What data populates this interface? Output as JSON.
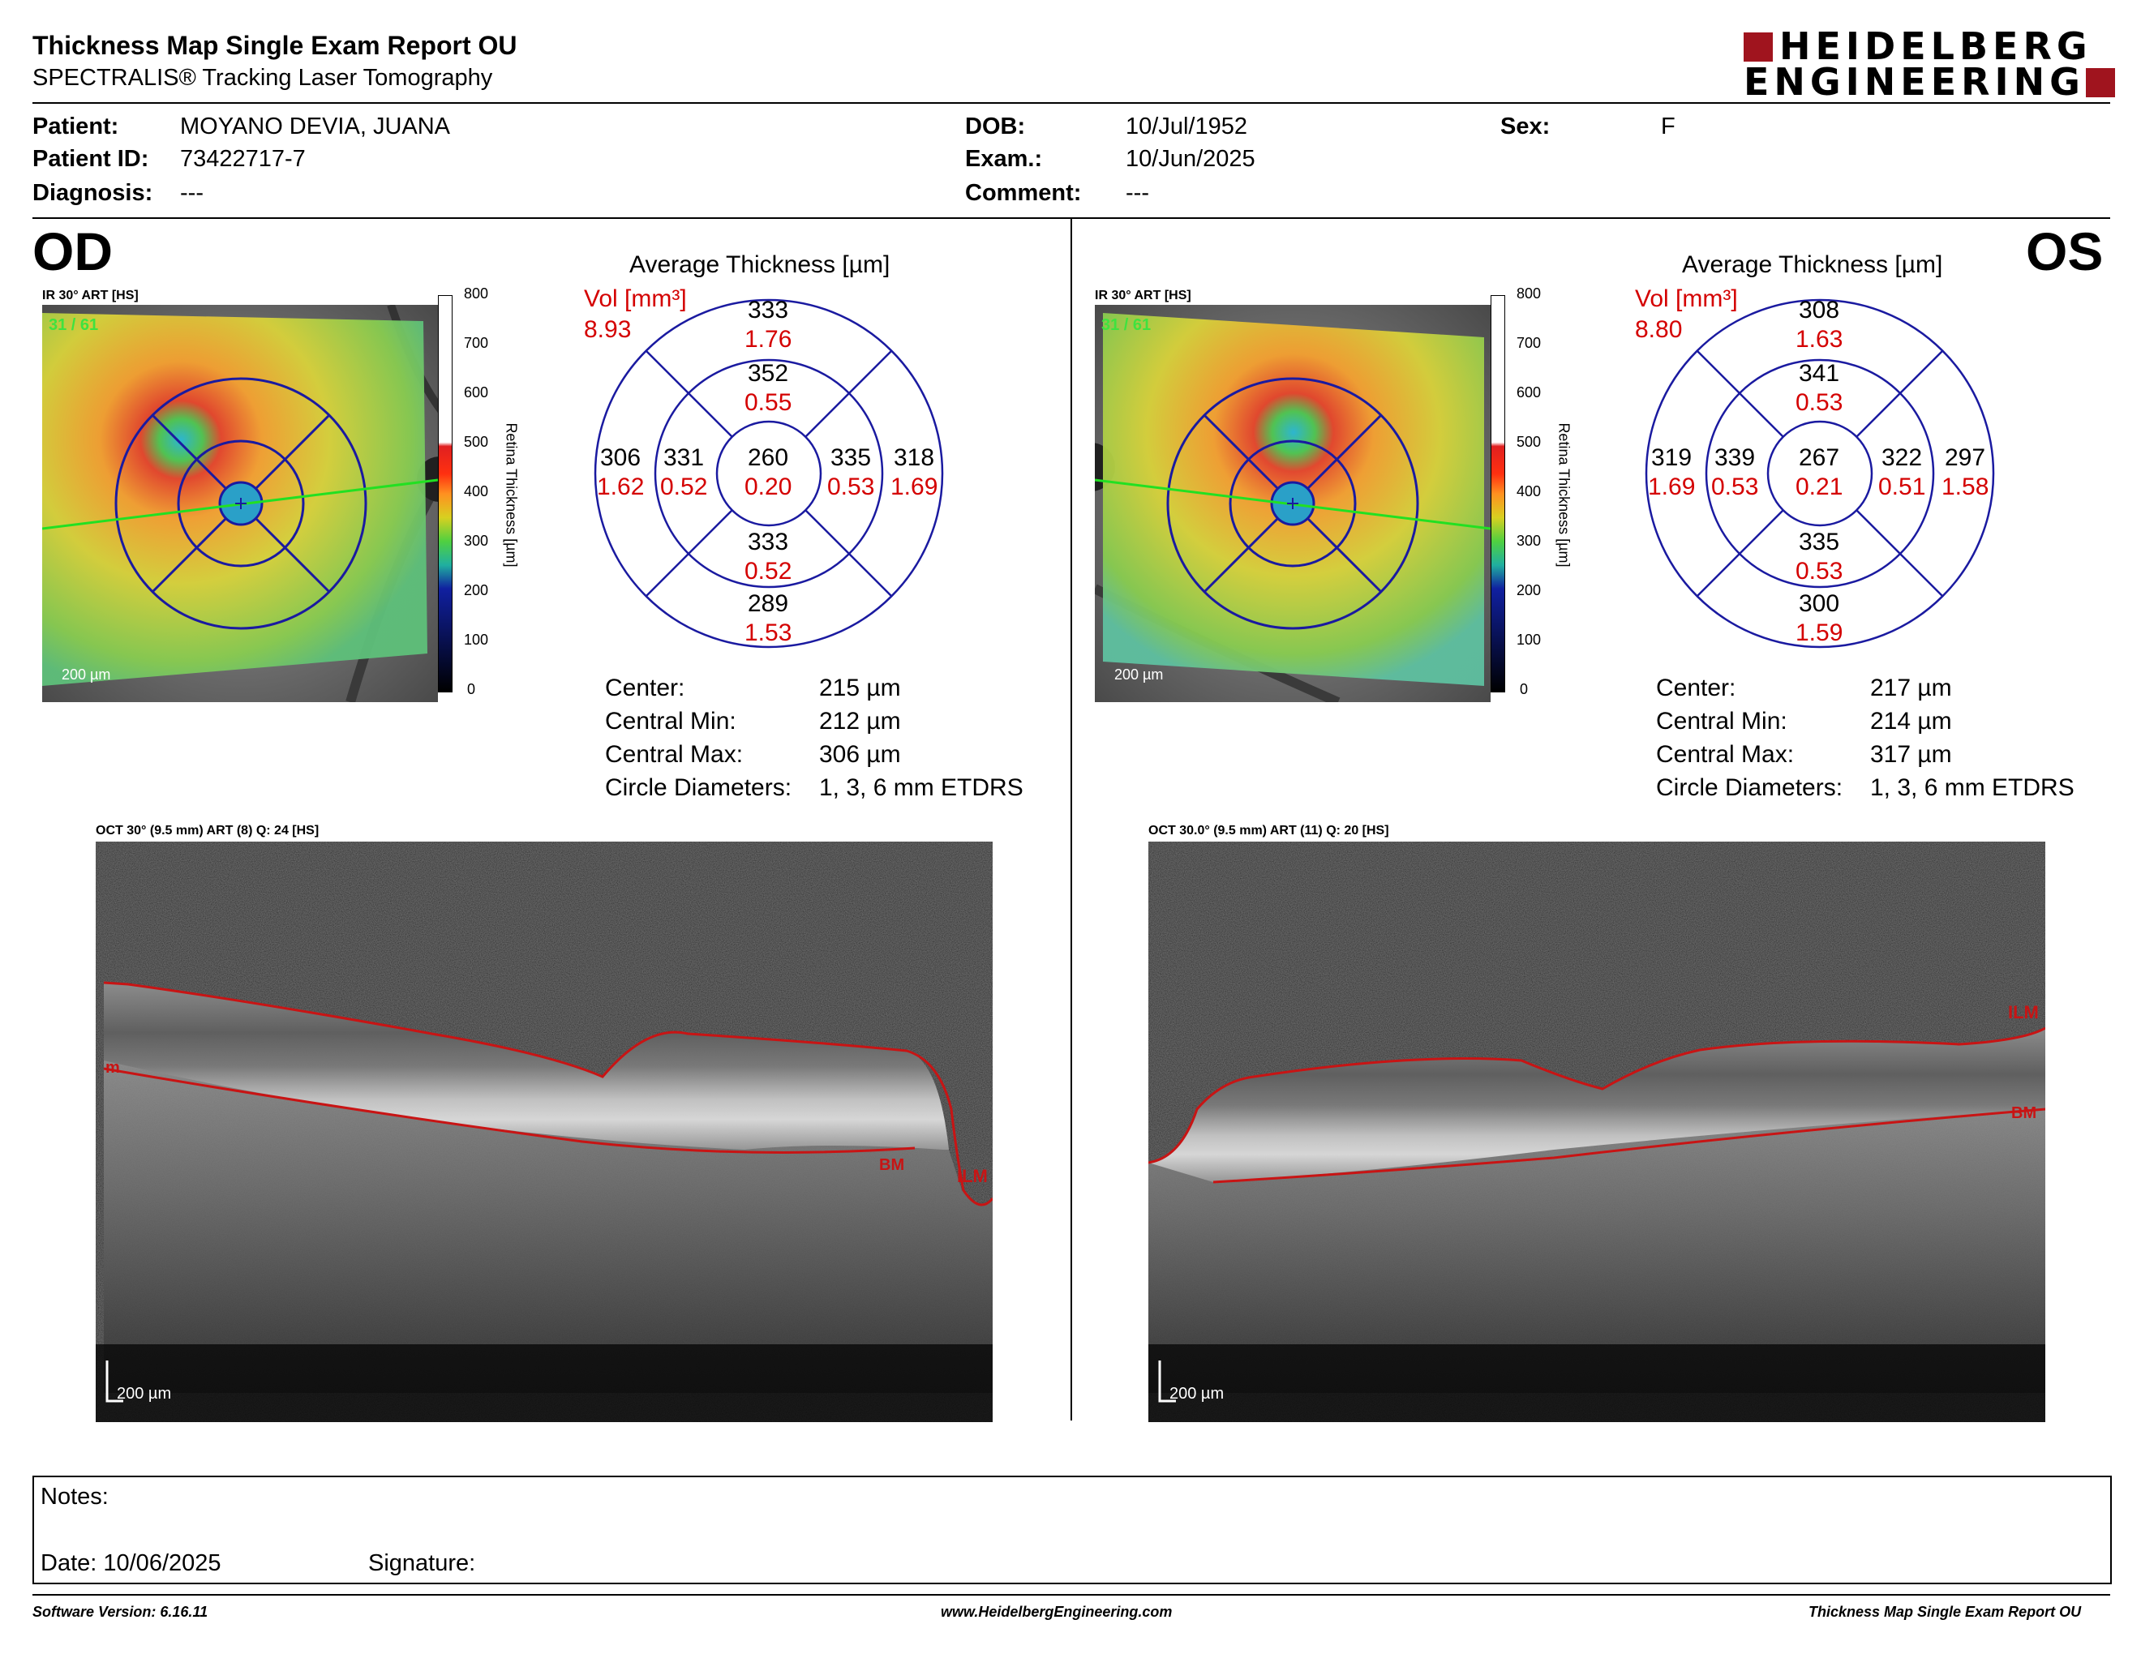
{
  "header": {
    "title": "Thickness Map Single Exam Report OU",
    "subtitle": "SPECTRALIS® Tracking Laser Tomography",
    "logo_line1": "HEIDELBERG",
    "logo_line2": "ENGINEERING"
  },
  "patient": {
    "patient_label": "Patient:",
    "patient_value": "MOYANO DEVIA, JUANA",
    "id_label": "Patient ID:",
    "id_value": "73422717-7",
    "diag_label": "Diagnosis:",
    "diag_value": "---",
    "dob_label": "DOB:",
    "dob_value": "10/Jul/1952",
    "exam_label": "Exam.:",
    "exam_value": "10/Jun/2025",
    "comment_label": "Comment:",
    "comment_value": "---",
    "sex_label": "Sex:",
    "sex_value": "F"
  },
  "od": {
    "eye": "OD",
    "ir_label": "IR 30° ART [HS]",
    "frames": "31 / 61",
    "scale": "200 µm",
    "avg_title": "Average Thickness [µm]",
    "vol_label": "Vol [mm³]",
    "vol_value": "8.93",
    "sectors": {
      "outer_top": [
        "333",
        "1.76"
      ],
      "inner_top": [
        "352",
        "0.55"
      ],
      "outer_left": [
        "306",
        "1.62"
      ],
      "inner_left": [
        "331",
        "0.52"
      ],
      "center": [
        "260",
        "0.20"
      ],
      "inner_right": [
        "335",
        "0.53"
      ],
      "outer_right": [
        "318",
        "1.69"
      ],
      "inner_bottom": [
        "333",
        "0.52"
      ],
      "outer_bottom": [
        "289",
        "1.53"
      ]
    },
    "stats": {
      "center_label": "Center:",
      "center_value": "215 µm",
      "min_label": "Central Min:",
      "min_value": "212 µm",
      "max_label": "Central Max:",
      "max_value": "306 µm",
      "diam_label": "Circle Diameters:",
      "diam_value": "1, 3, 6 mm ETDRS"
    },
    "oct_label": "OCT 30° (9.5 mm) ART (8) Q: 24 [HS]",
    "oct_scale": "200 µm",
    "ilm": "ILM",
    "bm": "BM",
    "m": "m"
  },
  "os": {
    "eye": "OS",
    "ir_label": "IR 30° ART [HS]",
    "frames": "31 / 61",
    "scale": "200 µm",
    "avg_title": "Average Thickness [µm]",
    "vol_label": "Vol [mm³]",
    "vol_value": "8.80",
    "sectors": {
      "outer_top": [
        "308",
        "1.63"
      ],
      "inner_top": [
        "341",
        "0.53"
      ],
      "outer_left": [
        "319",
        "1.69"
      ],
      "inner_left": [
        "339",
        "0.53"
      ],
      "center": [
        "267",
        "0.21"
      ],
      "inner_right": [
        "322",
        "0.51"
      ],
      "outer_right": [
        "297",
        "1.58"
      ],
      "inner_bottom": [
        "335",
        "0.53"
      ],
      "outer_bottom": [
        "300",
        "1.59"
      ]
    },
    "stats": {
      "center_label": "Center:",
      "center_value": "217 µm",
      "min_label": "Central Min:",
      "min_value": "214 µm",
      "max_label": "Central Max:",
      "max_value": "317 µm",
      "diam_label": "Circle Diameters:",
      "diam_value": "1, 3, 6 mm ETDRS"
    },
    "oct_label": "OCT 30.0° (9.5 mm) ART (11) Q: 20 [HS]",
    "oct_scale": "200 µm",
    "ilm": "ILM",
    "bm": "BM"
  },
  "colorbar": {
    "ticks": [
      "800",
      "700",
      "600",
      "500",
      "400",
      "300",
      "200",
      "100",
      "0"
    ],
    "label": "Retina  Thickness [µm]"
  },
  "notes": {
    "notes_label": "Notes:",
    "date_label": "Date: 10/06/2025",
    "signature_label": "Signature:"
  },
  "footer": {
    "software": "Software Version: 6.16.11",
    "website": "www.HeidelbergEngineering.com",
    "report": "Thickness Map Single Exam Report OU"
  },
  "colors": {
    "ring": "#1a1aa0",
    "red": "#d40000",
    "logo_red": "#a0141e"
  }
}
